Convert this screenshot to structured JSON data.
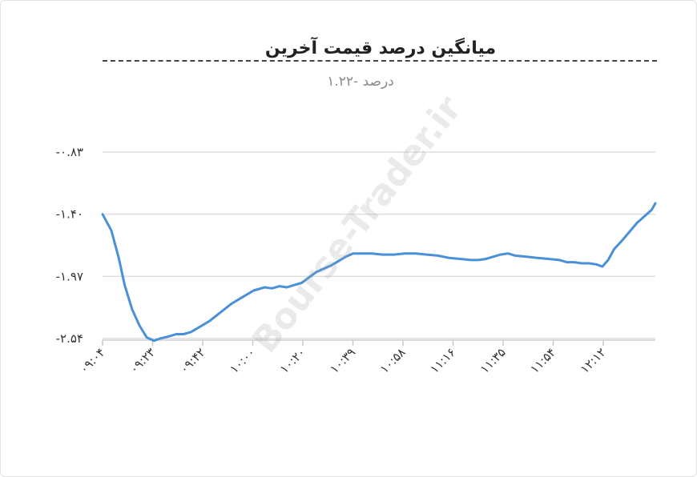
{
  "chart_data": {
    "type": "line",
    "title": "میانگین درصد قیمت آخرین",
    "subtitle": "درصد -۱.۲۲",
    "watermark": "Bourse-Trader.ir",
    "ylim": [
      -2.54,
      -0.83
    ],
    "y_ticks": [
      {
        "value": -0.83,
        "label": "-۰.۸۳"
      },
      {
        "value": -1.4,
        "label": "-۱.۴۰"
      },
      {
        "value": -1.97,
        "label": "-۱.۹۷"
      },
      {
        "value": -2.54,
        "label": "-۲.۵۴"
      }
    ],
    "x_ticks": [
      "۰۹:۰۴",
      "۰۹:۲۳",
      "۰۹:۴۲",
      "۱۰:۰۰",
      "۱۰:۲۰",
      "۱۰:۳۹",
      "۱۰:۵۸",
      "۱۱:۱۶",
      "۱۱:۳۵",
      "۱۱:۵۴",
      "۱۲:۱۲"
    ],
    "grid": true,
    "line_color": "#4a90d9",
    "series": [
      {
        "values": [
          [
            0.0,
            -1.4
          ],
          [
            1.2,
            -1.55
          ],
          [
            2.2,
            -1.8
          ],
          [
            3.0,
            -2.05
          ],
          [
            4.0,
            -2.27
          ],
          [
            5.0,
            -2.42
          ],
          [
            6.0,
            -2.53
          ],
          [
            7.0,
            -2.56
          ],
          [
            7.8,
            -2.54
          ],
          [
            9.0,
            -2.52
          ],
          [
            10.0,
            -2.5
          ],
          [
            11.0,
            -2.5
          ],
          [
            12.0,
            -2.48
          ],
          [
            13.0,
            -2.44
          ],
          [
            14.5,
            -2.38
          ],
          [
            16.0,
            -2.3
          ],
          [
            17.5,
            -2.22
          ],
          [
            19.0,
            -2.16
          ],
          [
            20.5,
            -2.1
          ],
          [
            22.0,
            -2.07
          ],
          [
            23.0,
            -2.08
          ],
          [
            24.0,
            -2.06
          ],
          [
            25.0,
            -2.07
          ],
          [
            26.0,
            -2.05
          ],
          [
            27.0,
            -2.03
          ],
          [
            28.0,
            -1.98
          ],
          [
            29.0,
            -1.93
          ],
          [
            30.0,
            -1.9
          ],
          [
            31.0,
            -1.87
          ],
          [
            32.0,
            -1.83
          ],
          [
            33.0,
            -1.79
          ],
          [
            34.0,
            -1.76
          ],
          [
            35.0,
            -1.76
          ],
          [
            36.5,
            -1.76
          ],
          [
            38.0,
            -1.77
          ],
          [
            39.5,
            -1.77
          ],
          [
            41.0,
            -1.76
          ],
          [
            42.5,
            -1.76
          ],
          [
            44.0,
            -1.77
          ],
          [
            45.5,
            -1.78
          ],
          [
            47.0,
            -1.8
          ],
          [
            48.5,
            -1.81
          ],
          [
            50.0,
            -1.82
          ],
          [
            51.0,
            -1.82
          ],
          [
            52.0,
            -1.81
          ],
          [
            53.0,
            -1.79
          ],
          [
            54.0,
            -1.77
          ],
          [
            55.0,
            -1.76
          ],
          [
            56.0,
            -1.78
          ],
          [
            57.5,
            -1.79
          ],
          [
            59.0,
            -1.8
          ],
          [
            60.5,
            -1.81
          ],
          [
            62.0,
            -1.82
          ],
          [
            63.0,
            -1.84
          ],
          [
            64.0,
            -1.84
          ],
          [
            65.0,
            -1.85
          ],
          [
            66.0,
            -1.85
          ],
          [
            67.0,
            -1.86
          ],
          [
            67.8,
            -1.88
          ],
          [
            68.6,
            -1.82
          ],
          [
            69.4,
            -1.72
          ],
          [
            70.5,
            -1.64
          ],
          [
            71.5,
            -1.56
          ],
          [
            72.5,
            -1.48
          ],
          [
            73.5,
            -1.42
          ],
          [
            74.5,
            -1.36
          ],
          [
            75.0,
            -1.3
          ]
        ]
      }
    ]
  }
}
